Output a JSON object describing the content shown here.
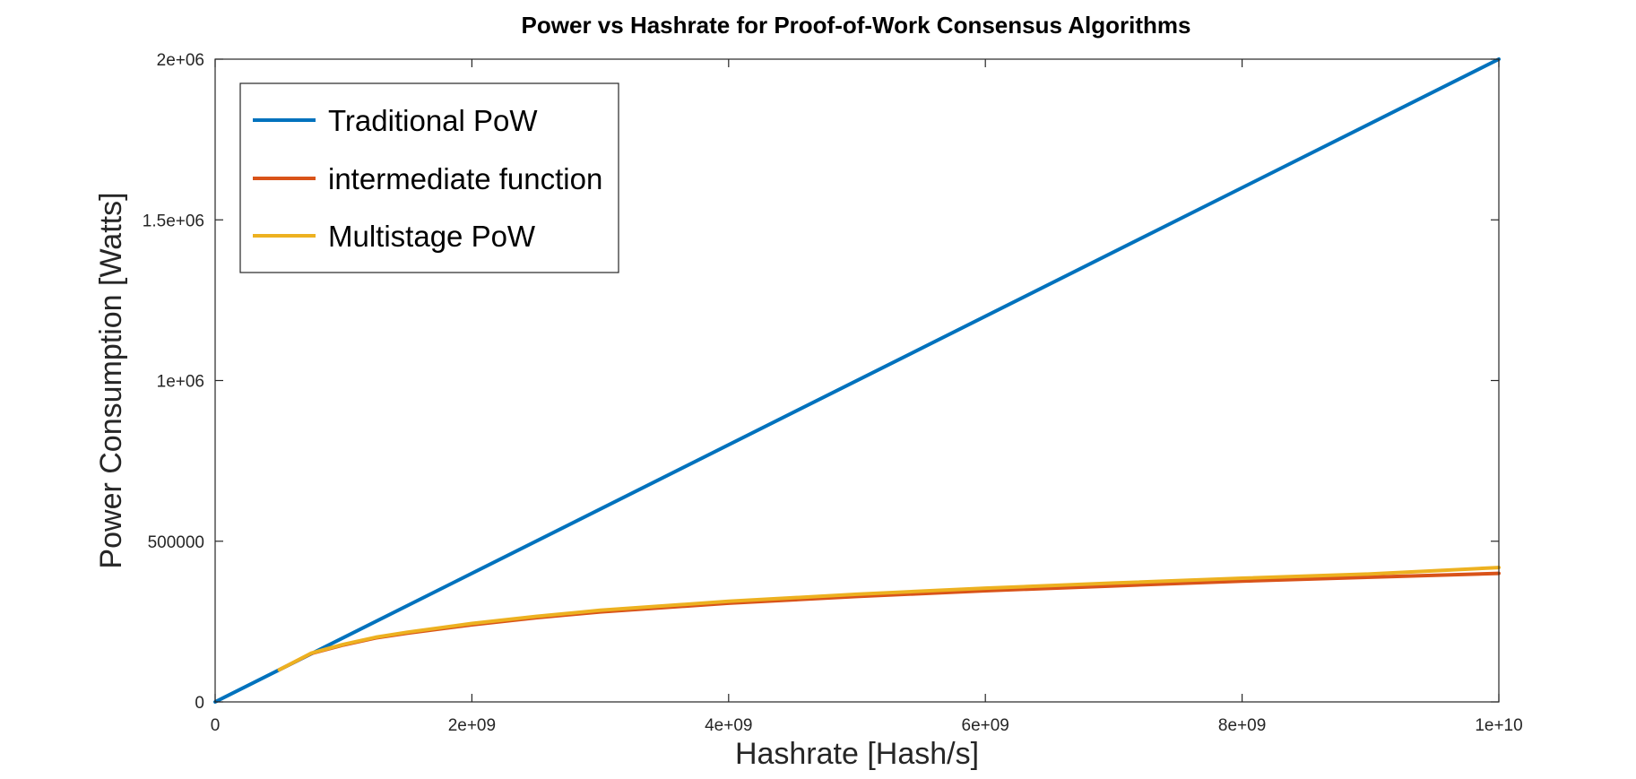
{
  "chart_data": {
    "type": "line",
    "title": "Power vs Hashrate for Proof-of-Work Consensus Algorithms",
    "xlabel": "Hashrate [Hash/s]",
    "ylabel": "Power Consumption [Watts]",
    "xlim": [
      0,
      10000000000
    ],
    "ylim": [
      0,
      2000000
    ],
    "xticks": [
      0,
      2000000000,
      4000000000,
      6000000000,
      8000000000,
      10000000000
    ],
    "xtick_labels": [
      "0",
      "2e+09",
      "4e+09",
      "6e+09",
      "8e+09",
      "1e+10"
    ],
    "yticks": [
      0,
      500000,
      1000000,
      1500000,
      2000000
    ],
    "ytick_labels": [
      "0",
      "500000",
      "1e+06",
      "1.5e+06",
      "2e+06"
    ],
    "grid": false,
    "legend_position": "top-left",
    "series": [
      {
        "name": "Traditional PoW",
        "color": "#0072BD",
        "x": [
          0,
          10000000000
        ],
        "y": [
          0,
          2000000
        ]
      },
      {
        "name": "intermediate function",
        "color": "#D95319",
        "x": [
          500000000,
          750000000,
          1000000000,
          1250000000,
          1500000000,
          2000000000,
          2500000000,
          3000000000,
          4000000000,
          5000000000,
          6000000000,
          7000000000,
          8000000000,
          9000000000,
          10000000000
        ],
        "y": [
          100000,
          151000,
          177000,
          199000,
          214000,
          240000,
          262000,
          280000,
          307000,
          328000,
          346000,
          361000,
          376000,
          388000,
          400000
        ]
      },
      {
        "name": "Multistage PoW",
        "color": "#EDB120",
        "x": [
          500000000,
          750000000,
          1000000000,
          1250000000,
          1500000000,
          2000000000,
          2500000000,
          3000000000,
          4000000000,
          5000000000,
          6000000000,
          7000000000,
          8000000000,
          9000000000,
          10000000000
        ],
        "y": [
          100000,
          152000,
          179000,
          201000,
          217000,
          244000,
          266000,
          285000,
          313000,
          335000,
          354000,
          370000,
          385000,
          398000,
          418000
        ]
      }
    ]
  }
}
